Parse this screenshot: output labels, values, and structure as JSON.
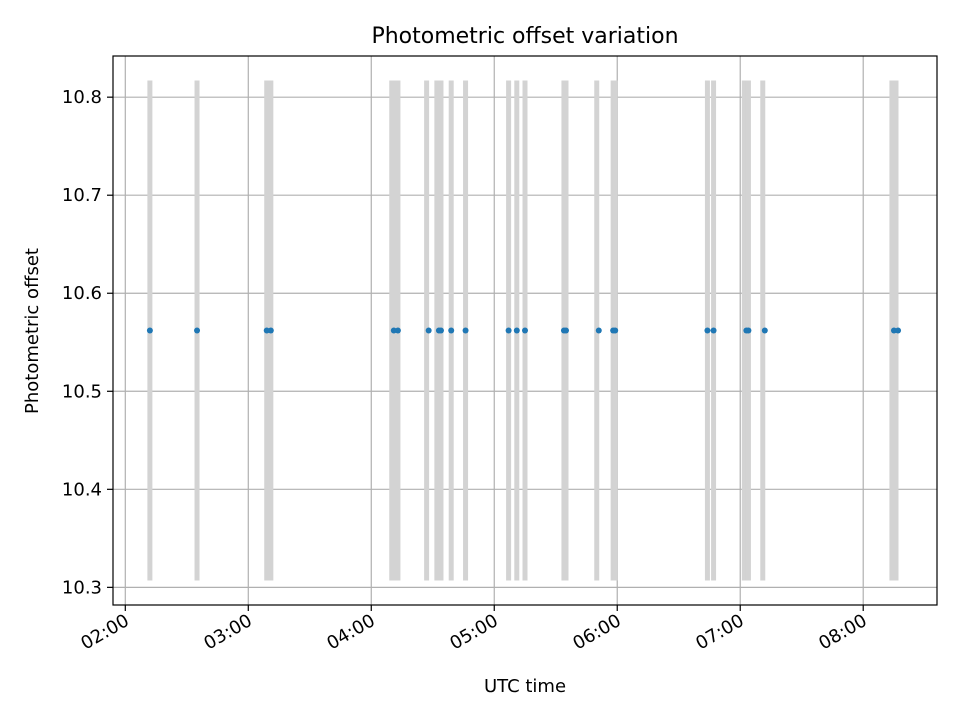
{
  "chart_data": {
    "type": "scatter",
    "title": "Photometric offset variation",
    "xlabel": "UTC time",
    "ylabel": "Photometric offset",
    "grid": true,
    "xlim": [
      "01:54",
      "08:36"
    ],
    "ylim": [
      10.282,
      10.842
    ],
    "x_ticks": [
      "02:00",
      "03:00",
      "04:00",
      "05:00",
      "06:00",
      "07:00",
      "08:00"
    ],
    "y_ticks": [
      "10.3",
      "10.4",
      "10.5",
      "10.6",
      "10.7",
      "10.8"
    ],
    "colors": {
      "points": "#1f77b4",
      "bars": "#d3d3d3",
      "grid": "#b0b0b0"
    },
    "bars": {
      "ymin": 10.307,
      "ymax": 10.817,
      "x": [
        "02:12",
        "02:35",
        "03:09",
        "03:10",
        "03:11",
        "04:10",
        "04:11",
        "04:12",
        "04:13",
        "04:27",
        "04:32",
        "04:33",
        "04:34",
        "04:39",
        "04:46",
        "05:07",
        "05:11",
        "05:15",
        "05:34",
        "05:35",
        "05:50",
        "05:58",
        "05:59",
        "06:44",
        "06:47",
        "07:02",
        "07:03",
        "07:04",
        "07:11",
        "08:14",
        "08:15",
        "08:16"
      ]
    },
    "points": {
      "y": 10.562,
      "x": [
        "02:12",
        "02:35",
        "03:09",
        "03:11",
        "04:11",
        "04:13",
        "04:28",
        "04:33",
        "04:34",
        "04:39",
        "04:46",
        "05:07",
        "05:11",
        "05:15",
        "05:34",
        "05:35",
        "05:51",
        "05:58",
        "05:59",
        "06:44",
        "06:47",
        "07:03",
        "07:04",
        "07:12",
        "08:15",
        "08:17"
      ]
    }
  }
}
